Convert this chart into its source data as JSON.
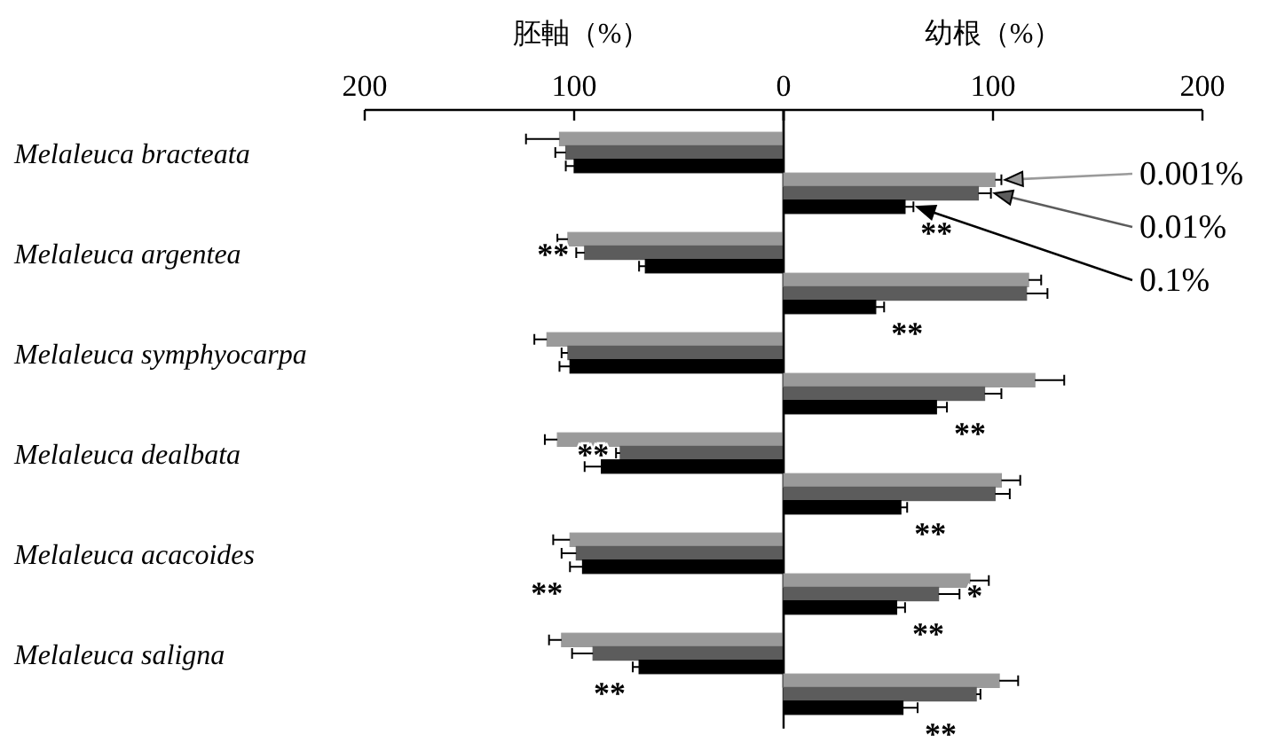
{
  "chart_data": [
    {
      "type": "bar",
      "orientation": "horizontal",
      "xlabel": "胚軸（%）",
      "categories": [
        "Melaleuca bracteata",
        "Melaleuca argentea",
        "Melaleuca symphyocarpa",
        "Melaleuca dealbata",
        "Melaleuca acacoides",
        "Melaleuca saligna"
      ],
      "xlim": [
        200,
        0
      ],
      "xticks": [
        200,
        100,
        0
      ],
      "series": [
        {
          "color": "#9a9a9a",
          "values": [
            107,
            103,
            113,
            108,
            102,
            106
          ],
          "errors": [
            16,
            5,
            6,
            6,
            8,
            6
          ]
        },
        {
          "color": "#5c5c5c",
          "values": [
            104,
            95,
            103,
            78,
            99,
            91
          ],
          "errors": [
            5,
            4,
            3,
            2,
            7,
            10
          ],
          "value_labels": [
            null,
            "**",
            null,
            "**",
            null,
            null
          ]
        },
        {
          "color": "#000000",
          "values": [
            100,
            66,
            102,
            87,
            96,
            69
          ],
          "errors": [
            4,
            3,
            5,
            8,
            6,
            3
          ],
          "value_labels": [
            null,
            null,
            null,
            null,
            "**",
            "**"
          ]
        }
      ]
    },
    {
      "type": "bar",
      "orientation": "horizontal",
      "xlabel": "幼根（%）",
      "tick_labels": "x",
      "legend": "right",
      "categories": [
        null,
        null,
        null,
        null,
        null,
        null
      ],
      "xlim": [
        0,
        200
      ],
      "xticks": [
        {
          "value": 0,
          "label": null
        },
        100,
        200
      ],
      "series": [
        {
          "name": "0.001%",
          "color": "#9a9a9a",
          "values": [
            101,
            117,
            120,
            104,
            89,
            103
          ],
          "errors": [
            3,
            6,
            14,
            9,
            9,
            9
          ]
        },
        {
          "name": "0.01%",
          "color": "#5c5c5c",
          "values": [
            93,
            116,
            96,
            101,
            74,
            92
          ],
          "errors": [
            6,
            10,
            8,
            7,
            10,
            2
          ],
          "value_labels": [
            null,
            null,
            null,
            null,
            "*",
            null
          ]
        },
        {
          "name": "0.1%",
          "color": "#000000",
          "values": [
            58,
            44,
            73,
            56,
            54,
            57
          ],
          "errors": [
            4,
            4,
            5,
            3,
            4,
            7
          ],
          "value_labels": [
            "**",
            "**",
            "**",
            "**",
            "**",
            "**"
          ]
        }
      ]
    }
  ]
}
